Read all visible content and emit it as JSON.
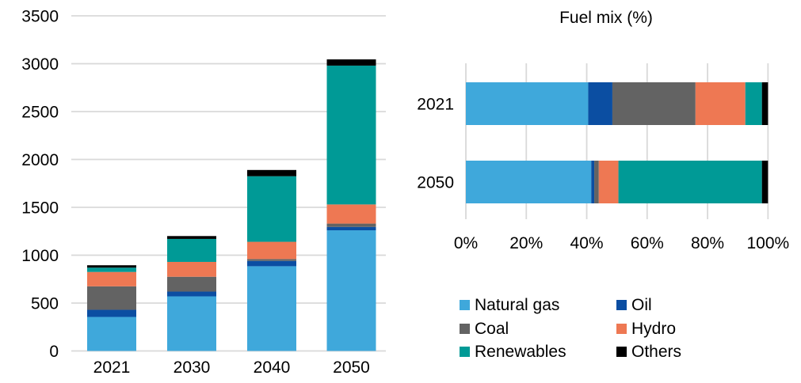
{
  "chart_data": [
    {
      "type": "bar",
      "subtype": "stacked-vertical",
      "title": "",
      "xlabel": "",
      "ylabel": "",
      "categories": [
        "2021",
        "2030",
        "2040",
        "2050"
      ],
      "series": [
        {
          "name": "Natural gas",
          "color": "#3FA8DB",
          "values": [
            355,
            570,
            885,
            1260
          ]
        },
        {
          "name": "Oil",
          "color": "#0B4EA2",
          "values": [
            75,
            50,
            55,
            35
          ]
        },
        {
          "name": "Coal",
          "color": "#636363",
          "values": [
            245,
            155,
            20,
            35
          ]
        },
        {
          "name": "Hydro",
          "color": "#EE7853",
          "values": [
            150,
            155,
            180,
            200
          ]
        },
        {
          "name": "Renewables",
          "color": "#009A96",
          "values": [
            45,
            240,
            685,
            1450
          ]
        },
        {
          "name": "Others",
          "color": "#000000",
          "values": [
            25,
            30,
            65,
            65
          ]
        }
      ],
      "totals": [
        895,
        1200,
        1890,
        3045
      ],
      "ylim": [
        0,
        3500
      ],
      "yticks": [
        "0",
        "500",
        "1000",
        "1500",
        "2000",
        "2500",
        "3000",
        "3500"
      ],
      "grid": "horizontal",
      "legend_position": "shared-bottom-right"
    },
    {
      "type": "bar",
      "subtype": "stacked-horizontal",
      "title": "Fuel mix (%)",
      "xlabel": "",
      "ylabel": "",
      "categories": [
        "2021",
        "2050"
      ],
      "series": [
        {
          "name": "Natural gas",
          "color": "#3FA8DB",
          "values": [
            40.5,
            41.5
          ]
        },
        {
          "name": "Oil",
          "color": "#0B4EA2",
          "values": [
            8,
            1
          ]
        },
        {
          "name": "Coal",
          "color": "#636363",
          "values": [
            27.5,
            1.5
          ]
        },
        {
          "name": "Hydro",
          "color": "#EE7853",
          "values": [
            16.5,
            6.5
          ]
        },
        {
          "name": "Renewables",
          "color": "#009A96",
          "values": [
            5.5,
            47.5
          ]
        },
        {
          "name": "Others",
          "color": "#000000",
          "values": [
            2,
            2
          ]
        }
      ],
      "xlim": [
        0,
        100
      ],
      "xticks": [
        "0%",
        "20%",
        "40%",
        "60%",
        "80%",
        "100%"
      ],
      "grid": "vertical",
      "legend_position": "bottom"
    }
  ],
  "legend": {
    "items": [
      {
        "label": "Natural gas",
        "color": "#3FA8DB"
      },
      {
        "label": "Oil",
        "color": "#0B4EA2"
      },
      {
        "label": "Coal",
        "color": "#636363"
      },
      {
        "label": "Hydro",
        "color": "#EE7853"
      },
      {
        "label": "Renewables",
        "color": "#009A96"
      },
      {
        "label": "Others",
        "color": "#000000"
      }
    ]
  },
  "colors": {
    "grid": "#D9D9D9",
    "text": "#000000",
    "background": "#FFFFFF"
  }
}
